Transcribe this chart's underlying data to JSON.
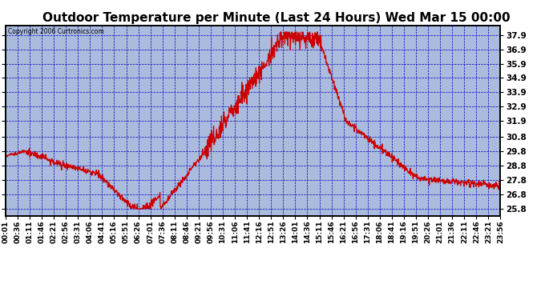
{
  "title": "Outdoor Temperature per Minute (Last 24 Hours) Wed Mar 15 00:00",
  "copyright": "Copyright 2006 Curtronics.com",
  "ylabel_values": [
    25.8,
    26.8,
    27.8,
    28.8,
    29.8,
    30.8,
    31.9,
    32.9,
    33.9,
    34.9,
    35.9,
    36.9,
    37.9
  ],
  "ymin": 25.3,
  "ymax": 38.55,
  "xtick_labels": [
    "00:01",
    "00:36",
    "01:11",
    "01:46",
    "02:21",
    "02:56",
    "03:31",
    "04:06",
    "04:41",
    "05:16",
    "05:51",
    "06:26",
    "07:01",
    "07:36",
    "08:11",
    "08:46",
    "09:21",
    "09:56",
    "10:31",
    "11:06",
    "11:41",
    "12:16",
    "12:51",
    "13:26",
    "14:01",
    "14:36",
    "15:11",
    "15:46",
    "16:21",
    "16:56",
    "17:31",
    "18:06",
    "18:41",
    "19:16",
    "19:51",
    "20:26",
    "21:01",
    "21:36",
    "22:11",
    "22:46",
    "23:21",
    "23:56"
  ],
  "line_color": "#cc0000",
  "grid_color": "#0000bb",
  "plot_bg": "#aabbdd",
  "title_fontsize": 11,
  "figsize": [
    6.9,
    3.75
  ],
  "dpi": 100
}
